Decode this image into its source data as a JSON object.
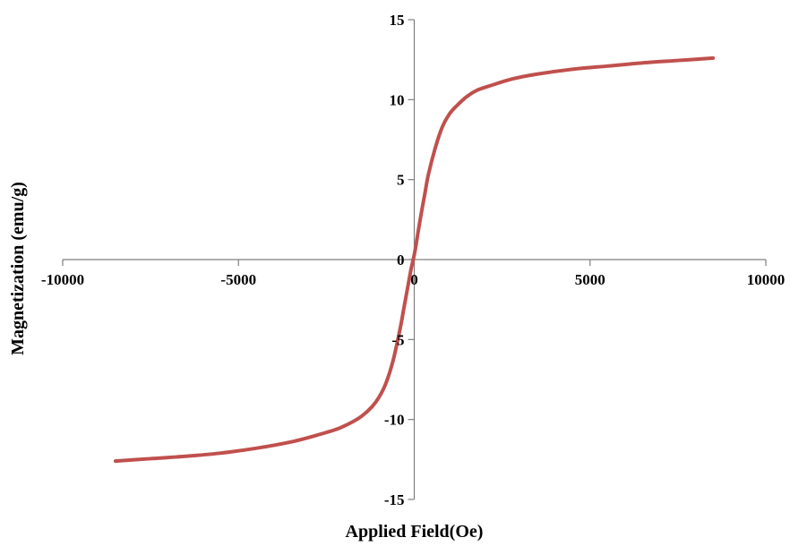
{
  "chart_data": {
    "type": "line",
    "title": "",
    "xlabel": "Applied Field(Oe)",
    "ylabel": "Magnetization (emu/g)",
    "xlim": [
      -10000,
      10000
    ],
    "ylim": [
      -15,
      15
    ],
    "x_ticks": [
      -10000,
      -5000,
      0,
      5000,
      10000
    ],
    "y_ticks": [
      -15,
      -10,
      -5,
      0,
      5,
      10,
      15
    ],
    "x_tick_labels": [
      "-10000",
      "-5000",
      "0",
      "5000",
      "10000"
    ],
    "y_tick_labels": [
      "-15",
      "-10",
      "-5",
      "0",
      "5",
      "10",
      "15"
    ],
    "grid": false,
    "legend": "none",
    "series": [
      {
        "color": "#c0504d",
        "x": [
          -8500,
          -7500,
          -6500,
          -5500,
          -4500,
          -3500,
          -2800,
          -2200,
          -1800,
          -1500,
          -1200,
          -1000,
          -800,
          -600,
          -400,
          -300,
          -200,
          -100,
          -50,
          0,
          50,
          100,
          200,
          300,
          400,
          600,
          800,
          1000,
          1200,
          1500,
          1800,
          2200,
          2800,
          3500,
          4500,
          5500,
          6500,
          7500,
          8500
        ],
        "y": [
          -12.6,
          -12.45,
          -12.3,
          -12.1,
          -11.8,
          -11.4,
          -11.0,
          -10.6,
          -10.2,
          -9.8,
          -9.2,
          -8.6,
          -7.7,
          -6.3,
          -4.3,
          -3.1,
          -1.9,
          -0.7,
          -0.2,
          0.3,
          0.9,
          1.6,
          2.9,
          4.1,
          5.3,
          7.0,
          8.3,
          9.1,
          9.6,
          10.2,
          10.6,
          10.9,
          11.3,
          11.6,
          11.9,
          12.1,
          12.3,
          12.45,
          12.6
        ]
      }
    ]
  }
}
